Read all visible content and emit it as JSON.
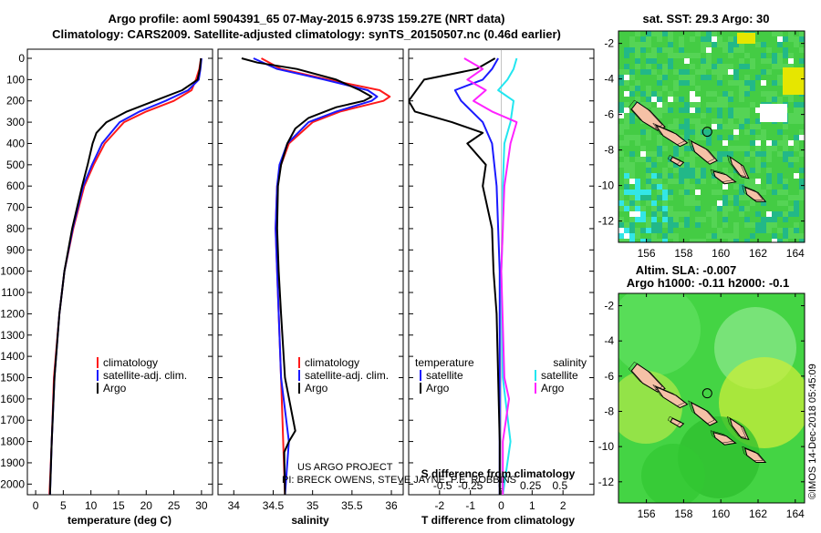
{
  "header": {
    "title_line1": "Argo profile: aoml 5904391_65 07-May-2015 6.973S 159.27E (NRT data)",
    "title_line2": "Climatology: CARS2009. Satellite-adjusted climatology: synTS_20150507.nc (0.46d earlier)"
  },
  "colors": {
    "climatology": "#ff1a1a",
    "satellite": "#1a1aff",
    "argo": "#000000",
    "sat_salinity": "#22e6f0",
    "argo_salinity": "#ff22ff"
  },
  "chart_data": [
    {
      "id": "temperature",
      "type": "line",
      "xlabel": "temperature (deg C)",
      "ylabel": "",
      "xlim": [
        -1.5,
        32
      ],
      "ylim": [
        2050,
        0
      ],
      "xticks": [
        0,
        5,
        10,
        15,
        20,
        25,
        30
      ],
      "yticks": [
        0,
        100,
        200,
        300,
        400,
        500,
        600,
        700,
        800,
        900,
        1000,
        1100,
        1200,
        1300,
        1400,
        1500,
        1600,
        1700,
        1800,
        1900,
        2000
      ],
      "legend": [
        "climatology",
        "satellite-adj. clim.",
        "Argo"
      ],
      "series": [
        {
          "name": "climatology",
          "color": "#ff1a1a",
          "depth": [
            0,
            50,
            100,
            150,
            200,
            250,
            300,
            400,
            500,
            600,
            800,
            1000,
            1200,
            1500,
            1800,
            2050
          ],
          "values": [
            29.9,
            29.6,
            29,
            28.2,
            25,
            20,
            16,
            12.5,
            10.5,
            8.8,
            6.8,
            5.2,
            4.3,
            3.3,
            2.9,
            2.5
          ]
        },
        {
          "name": "satellite-adj. clim.",
          "color": "#1a1aff",
          "depth": [
            0,
            50,
            100,
            150,
            200,
            250,
            300,
            400,
            500,
            600,
            800,
            1000,
            1200,
            1500,
            1800,
            2050
          ],
          "values": [
            30,
            29.8,
            29.5,
            27.6,
            23.5,
            18.8,
            15.2,
            12,
            10.2,
            8.6,
            6.7,
            5.2,
            4.3,
            3.4,
            2.9,
            2.6
          ]
        },
        {
          "name": "Argo",
          "color": "#000000",
          "depth": [
            0,
            50,
            100,
            150,
            200,
            250,
            300,
            350,
            400,
            500,
            600,
            800,
            1000,
            1200,
            1500,
            1800,
            2050
          ],
          "values": [
            29.9,
            29.7,
            29.3,
            26.5,
            21.5,
            16.5,
            12.8,
            11,
            10.3,
            9.4,
            8.4,
            6.6,
            5.2,
            4.3,
            3.4,
            2.9,
            2.6
          ]
        }
      ]
    },
    {
      "id": "salinity",
      "type": "line",
      "xlabel": "salinity",
      "ylabel": "",
      "xlim": [
        33.8,
        36.15
      ],
      "ylim": [
        2050,
        0
      ],
      "xticks": [
        34,
        34.5,
        35,
        35.5,
        36
      ],
      "legend": [
        "climatology",
        "satellite-adj. clim.",
        "Argo"
      ],
      "series": [
        {
          "name": "climatology",
          "color": "#ff1a1a",
          "depth": [
            0,
            50,
            100,
            150,
            180,
            200,
            250,
            300,
            400,
            500,
            600,
            800,
            1000,
            1500,
            2050
          ],
          "values": [
            34.35,
            34.6,
            35.2,
            35.85,
            35.98,
            35.9,
            35.35,
            35,
            34.7,
            34.6,
            34.55,
            34.53,
            34.55,
            34.6,
            34.65
          ]
        },
        {
          "name": "satellite-adj. clim.",
          "color": "#1a1aff",
          "depth": [
            0,
            50,
            100,
            150,
            180,
            200,
            250,
            300,
            400,
            500,
            600,
            800,
            1000,
            1500,
            1800,
            2050
          ],
          "values": [
            34.25,
            34.55,
            35.15,
            35.7,
            35.82,
            35.75,
            35.3,
            34.95,
            34.68,
            34.58,
            34.55,
            34.53,
            34.55,
            34.6,
            34.7,
            34.65
          ]
        },
        {
          "name": "Argo",
          "color": "#000000",
          "depth": [
            0,
            20,
            50,
            100,
            150,
            180,
            200,
            230,
            280,
            330,
            400,
            500,
            600,
            800,
            1000,
            1200,
            1500,
            1750,
            1800,
            1850,
            2050
          ],
          "values": [
            34.1,
            34.3,
            34.8,
            35.3,
            35.6,
            35.75,
            35.65,
            35.3,
            34.95,
            34.78,
            34.68,
            34.6,
            34.56,
            34.55,
            34.57,
            34.6,
            34.65,
            34.78,
            34.7,
            34.64,
            34.65
          ]
        }
      ]
    },
    {
      "id": "difference",
      "type": "line",
      "xlabel": "T difference from climatology",
      "xlabel_top": "S difference from climatology",
      "xlim": [
        -3,
        3
      ],
      "ylim": [
        2050,
        0
      ],
      "xticks": [
        -2,
        -1,
        0,
        1,
        2
      ],
      "xticks_top": [
        "-0.5",
        "-0.25",
        "0",
        "0.25",
        "0.5"
      ],
      "xticks_top_values": [
        -1.9,
        -1.0,
        0,
        0.95,
        1.9
      ],
      "legend_temperature": {
        "title": "temperature",
        "items": [
          "satellite",
          "Argo"
        ]
      },
      "legend_salinity": {
        "title": "salinity",
        "items": [
          "satellite",
          "Argo"
        ]
      },
      "series": [
        {
          "name": "T satellite",
          "color": "#1a1aff",
          "depth": [
            0,
            50,
            100,
            150,
            200,
            300,
            400,
            600,
            800,
            1000,
            1500,
            2050
          ],
          "values": [
            -0.1,
            -0.3,
            -0.6,
            -1.5,
            -1.3,
            -0.6,
            -0.3,
            -0.15,
            -0.1,
            -0.05,
            -0.05,
            -0.05
          ]
        },
        {
          "name": "T Argo",
          "color": "#000000",
          "depth": [
            0,
            50,
            100,
            200,
            250,
            300,
            350,
            400,
            500,
            600,
            800,
            1000,
            1200,
            1500,
            1800,
            2050
          ],
          "values": [
            -0.2,
            -0.8,
            -2.5,
            -3,
            -2.8,
            -1.6,
            -0.6,
            -1.1,
            -0.5,
            -0.6,
            -0.3,
            -0.25,
            -0.15,
            -0.1,
            -0.05,
            -0.05
          ]
        },
        {
          "name": "S satellite",
          "color": "#22e6f0",
          "depth": [
            0,
            50,
            100,
            150,
            200,
            300,
            400,
            600,
            800,
            1000,
            1500,
            1800,
            2050
          ],
          "values": [
            0.5,
            0.4,
            0.2,
            -0.1,
            0.4,
            0.3,
            0.1,
            0.05,
            0.05,
            0,
            0.05,
            0.3,
            0.05
          ]
        },
        {
          "name": "S Argo",
          "color": "#ff22ff",
          "depth": [
            0,
            50,
            100,
            150,
            200,
            250,
            300,
            400,
            600,
            800,
            1000,
            1500,
            1600,
            1800,
            2050
          ],
          "values": [
            -1.2,
            -0.6,
            -1.1,
            -0.5,
            -0.9,
            -0.3,
            0.5,
            0.3,
            0.1,
            0.05,
            0,
            0.1,
            0.25,
            0.05,
            0.05
          ]
        }
      ]
    },
    {
      "id": "sst_map",
      "type": "heatmap",
      "title": "sat. SST: 29.3 Argo: 30",
      "xticks": [
        156,
        158,
        160,
        162,
        164
      ],
      "yticks": [
        -2,
        -4,
        -6,
        -8,
        -10,
        -12
      ],
      "xlim": [
        154.5,
        164.5
      ],
      "ylim": [
        -13.2,
        -1.3
      ],
      "argo_position": [
        159.27,
        -6.973
      ]
    },
    {
      "id": "sla_map",
      "type": "heatmap",
      "title": "Altim. SLA: -0.007",
      "subtitle": "Argo h1000: -0.11 h2000: -0.1",
      "xticks": [
        156,
        158,
        160,
        162,
        164
      ],
      "yticks": [
        -2,
        -4,
        -6,
        -8,
        -10,
        -12
      ],
      "xlim": [
        154.5,
        164.5
      ],
      "ylim": [
        -13.2,
        -1.3
      ],
      "argo_position": [
        159.27,
        -6.973
      ]
    }
  ],
  "credits": {
    "project": "US ARGO PROJECT",
    "pi": "PI: BRECK OWENS, STEVE JAYNE, P.E. ROBBINS",
    "watermark": "©IMOS 14-Dec-2018 05:45:09"
  }
}
